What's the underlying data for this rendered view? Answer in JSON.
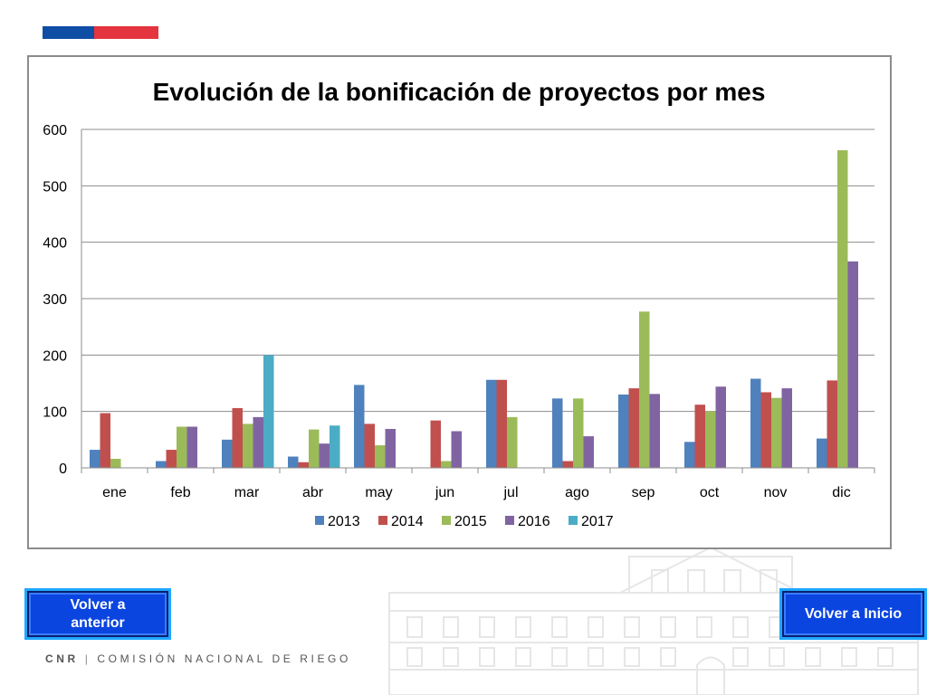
{
  "colors": {
    "flag_blue": "#0f4ea5",
    "flag_red": "#e4343d",
    "button_fill": "#0b45e0",
    "button_border": "#1ea7ff",
    "gridline": "#8c8c8c"
  },
  "buttons": {
    "previous_label": "Volver a anterior",
    "home_label": "Volver a Inicio"
  },
  "footer": {
    "acronym": "CNR",
    "separator": "|",
    "org_name": "COMISIÓN NACIONAL DE RIEGO"
  },
  "chart_data": {
    "type": "bar",
    "title": "Evolución de la bonificación de proyectos por mes",
    "xlabel": "",
    "ylabel": "",
    "ylim": [
      0,
      600
    ],
    "yticks": [
      0,
      100,
      200,
      300,
      400,
      500,
      600
    ],
    "grid": true,
    "legend_position": "bottom",
    "categories": [
      "ene",
      "feb",
      "mar",
      "abr",
      "may",
      "jun",
      "jul",
      "ago",
      "sep",
      "oct",
      "nov",
      "dic"
    ],
    "series": [
      {
        "name": "2013",
        "color": "#4f81bd",
        "values": [
          32,
          12,
          50,
          20,
          147,
          0,
          156,
          123,
          130,
          46,
          158,
          52
        ]
      },
      {
        "name": "2014",
        "color": "#c0504d",
        "values": [
          97,
          32,
          106,
          10,
          78,
          84,
          156,
          12,
          141,
          112,
          134,
          155
        ]
      },
      {
        "name": "2015",
        "color": "#9bbb59",
        "values": [
          16,
          73,
          78,
          68,
          40,
          12,
          90,
          123,
          277,
          100,
          124,
          563
        ]
      },
      {
        "name": "2016",
        "color": "#8064a2",
        "values": [
          0,
          73,
          90,
          43,
          69,
          65,
          0,
          56,
          131,
          144,
          141,
          366
        ]
      },
      {
        "name": "2017",
        "color": "#4bacc6",
        "values": [
          0,
          0,
          200,
          75,
          0,
          0,
          0,
          0,
          0,
          0,
          0,
          0
        ]
      }
    ]
  }
}
